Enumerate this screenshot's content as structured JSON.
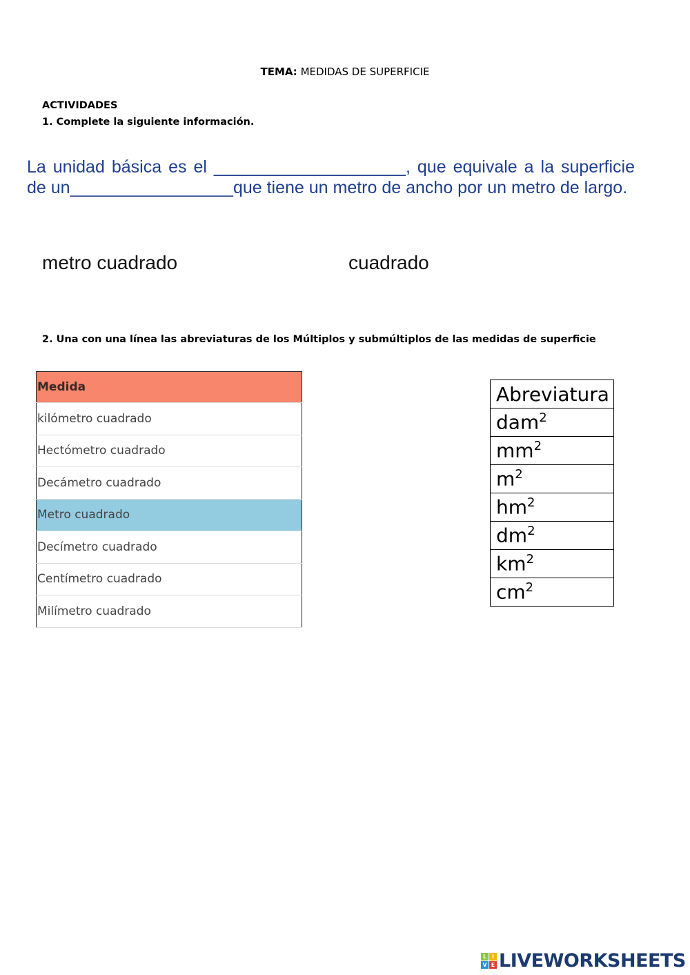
{
  "header": {
    "tema_label": "TEMA:",
    "tema_value": "MEDIDAS DE SUPERFICIE"
  },
  "activities_heading": "ACTIVIDADES",
  "q1": {
    "prompt": "1. Complete la siguiente información.",
    "text_1": "La unidad básica es el ",
    "blank_1": "____________________",
    "text_2": ", que equivale a la superficie de un",
    "blank_2": "_________________",
    "text_3": "que tiene un metro de ancho por un metro de largo.",
    "options": [
      "metro cuadrado",
      "cuadrado"
    ]
  },
  "q2": {
    "prompt_num": "2.",
    "prompt": " Una con una línea las abreviaturas de los Múltiplos y submúltiplos de las medidas de superficie",
    "medida_header": "Medida",
    "medidas": [
      "kilómetro cuadrado",
      "Hectómetro cuadrado",
      "Decámetro cuadrado",
      "Metro cuadrado",
      "Decímetro cuadrado",
      "Centímetro cuadrado",
      "Milímetro cuadrado"
    ],
    "abrev_header": "Abreviatura",
    "abreviaturas": [
      "dam",
      "mm",
      "m",
      "hm",
      "dm",
      "km",
      "cm"
    ],
    "exponent": "2"
  },
  "colors": {
    "header_row": "#f7866c",
    "highlight_row": "#93cbe0",
    "question_text": "#1f3f8f"
  },
  "logo": {
    "text": "LIVEWORKSHEETS",
    "blocks": [
      "L",
      "I",
      "V",
      "E"
    ]
  }
}
